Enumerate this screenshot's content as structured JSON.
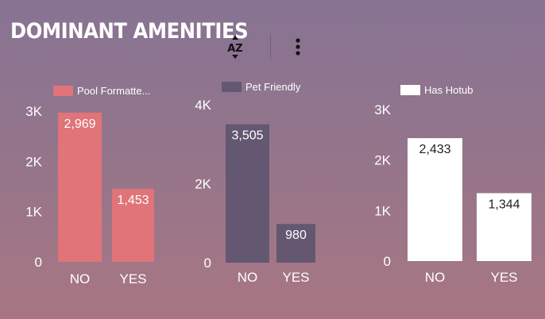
{
  "header": {
    "title": "DOMINANT AMENITIES",
    "sort_icon": "sort-alpha-icon",
    "sort_label": "AZ",
    "more_icon": "more-vertical-icon"
  },
  "chart_data": [
    {
      "type": "bar",
      "legend": "Pool Formatte...",
      "color": "#e07478",
      "categories": [
        "NO",
        "YES"
      ],
      "values": [
        2969,
        1453
      ],
      "data_labels": [
        "2,969",
        "1,453"
      ],
      "label_color": "#ffffff",
      "ylim": [
        0,
        3000
      ],
      "yticks": [
        {
          "v": 0,
          "t": "0"
        },
        {
          "v": 1000,
          "t": "1K"
        },
        {
          "v": 2000,
          "t": "2K"
        },
        {
          "v": 3000,
          "t": "3K"
        }
      ],
      "legend_placement": "top",
      "grid": false
    },
    {
      "type": "bar",
      "legend": "Pet Friendly",
      "color": "#645771",
      "categories": [
        "NO",
        "YES"
      ],
      "values": [
        3505,
        980
      ],
      "data_labels": [
        "3,505",
        "980"
      ],
      "label_color": "#ffffff",
      "ylim": [
        0,
        4000
      ],
      "yticks": [
        {
          "v": 0,
          "t": "0"
        },
        {
          "v": 2000,
          "t": "2K"
        },
        {
          "v": 4000,
          "t": "4K"
        }
      ],
      "legend_placement": "top",
      "grid": false
    },
    {
      "type": "bar",
      "legend": "Has Hotub",
      "color": "#ffffff",
      "categories": [
        "NO",
        "YES"
      ],
      "values": [
        2433,
        1344
      ],
      "data_labels": [
        "2,433",
        "1,344"
      ],
      "label_color": "#222222",
      "ylim": [
        0,
        3000
      ],
      "yticks": [
        {
          "v": 0,
          "t": "0"
        },
        {
          "v": 1000,
          "t": "1K"
        },
        {
          "v": 2000,
          "t": "2K"
        },
        {
          "v": 3000,
          "t": "3K"
        }
      ],
      "legend_placement": "top",
      "grid": false
    }
  ]
}
